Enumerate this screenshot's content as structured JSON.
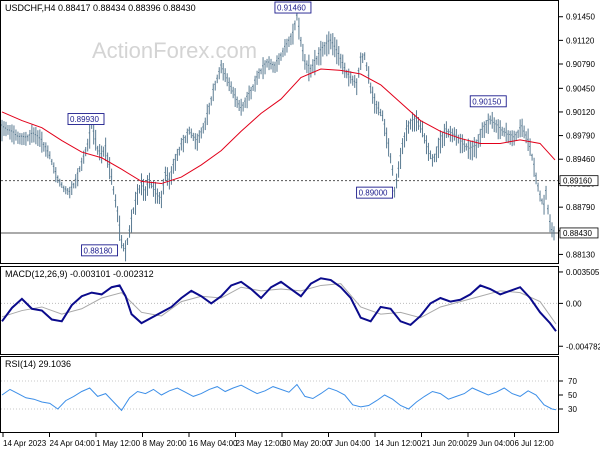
{
  "header": {
    "symbol_line": "USDCHF,H4 0.88417 0.88434 0.88396 0.88430",
    "watermark": "ActionForex.com"
  },
  "colors": {
    "price_bars": "#5a7b92",
    "moving_average": "#e2001a",
    "macd_line": "#0b0b8c",
    "macd_signal": "#a9a9a9",
    "rsi_line": "#3d8fe8",
    "box_text": "#1a1a8c",
    "axis": "#000000",
    "level_line": "#555555"
  },
  "chart_data": [
    {
      "type": "line",
      "panel": "price",
      "title": "USDCHF,H4 0.88417 0.88434 0.88396 0.88430",
      "ylim": [
        0.8808,
        0.916
      ],
      "x_ticks": [
        "14 Apr 2023",
        "24 Apr 04:00",
        "1 May 12:00",
        "8 May 20:00",
        "16 May 04:00",
        "23 May 12:00",
        "30 May 20:00",
        "7 Jun 04:00",
        "14 Jun 12:00",
        "21 Jun 20:00",
        "29 Jun 04:00",
        "6 Jul 12:00"
      ],
      "y_ticks": [
        0.9145,
        0.9112,
        0.9079,
        0.9045,
        0.9012,
        0.8979,
        0.8946,
        0.8912,
        0.8879,
        0.8846,
        0.8813
      ],
      "y_tick_labels": [
        "0.91450",
        "0.91120",
        "0.90790",
        "0.90450",
        "0.90120",
        "0.89790",
        "0.89460",
        "0.89120",
        "0.88790",
        "0.88460",
        "0.88130"
      ],
      "series": [
        {
          "name": "",
          "style": "bars",
          "x": [
            0,
            8,
            16,
            24,
            32,
            40,
            48,
            55,
            62,
            68,
            74,
            80,
            86,
            90,
            96,
            100,
            104,
            108,
            112,
            116,
            120,
            124,
            128,
            132,
            136,
            140,
            144,
            148,
            152,
            156,
            160,
            164,
            168,
            172,
            180,
            188,
            196,
            204,
            212,
            220,
            230,
            240,
            250,
            258,
            266,
            274,
            280,
            286,
            292,
            296,
            300,
            304,
            310,
            316,
            322,
            330,
            338,
            346,
            352,
            356,
            360,
            364,
            370,
            376,
            382,
            388,
            392,
            394,
            398,
            402,
            406,
            410,
            416,
            422,
            428,
            432,
            436,
            440,
            446,
            452,
            458,
            464,
            470,
            476,
            482,
            490,
            498,
            506,
            514,
            522,
            528,
            532,
            536,
            540,
            544,
            546,
            548,
            550,
            552,
            554
          ],
          "y": [
            0.899,
            0.8984,
            0.8976,
            0.8975,
            0.898,
            0.897,
            0.895,
            0.8921,
            0.8905,
            0.8899,
            0.8915,
            0.894,
            0.8965,
            0.8993,
            0.896,
            0.895,
            0.8961,
            0.8935,
            0.8902,
            0.887,
            0.883,
            0.8818,
            0.8845,
            0.8875,
            0.8895,
            0.891,
            0.89,
            0.8915,
            0.8905,
            0.8895,
            0.889,
            0.8925,
            0.8915,
            0.8935,
            0.8965,
            0.8985,
            0.897,
            0.8995,
            0.904,
            0.9075,
            0.9045,
            0.9015,
            0.904,
            0.9065,
            0.908,
            0.9075,
            0.909,
            0.9105,
            0.912,
            0.9146,
            0.911,
            0.908,
            0.907,
            0.9085,
            0.91,
            0.911,
            0.909,
            0.9065,
            0.9055,
            0.905,
            0.9085,
            0.909,
            0.9045,
            0.902,
            0.9005,
            0.8965,
            0.893,
            0.89,
            0.893,
            0.8965,
            0.8985,
            0.8995,
            0.9,
            0.8985,
            0.896,
            0.8945,
            0.895,
            0.897,
            0.8985,
            0.898,
            0.8975,
            0.8965,
            0.8958,
            0.8962,
            0.8985,
            0.9,
            0.899,
            0.898,
            0.8975,
            0.899,
            0.897,
            0.895,
            0.892,
            0.8895,
            0.888,
            0.89,
            0.8875,
            0.8855,
            0.8845,
            0.8843
          ]
        },
        {
          "name": "",
          "style": "line",
          "x": [
            0,
            20,
            40,
            60,
            80,
            100,
            120,
            140,
            160,
            180,
            200,
            220,
            240,
            260,
            280,
            300,
            320,
            340,
            360,
            380,
            400,
            420,
            440,
            460,
            480,
            500,
            520,
            540,
            555
          ],
          "y": [
            0.9012,
            0.9,
            0.899,
            0.8972,
            0.8956,
            0.8948,
            0.8932,
            0.8915,
            0.8912,
            0.8921,
            0.8938,
            0.8958,
            0.8985,
            0.901,
            0.903,
            0.906,
            0.9072,
            0.907,
            0.9065,
            0.905,
            0.9025,
            0.9,
            0.8985,
            0.8975,
            0.8968,
            0.8968,
            0.8973,
            0.8968,
            0.8945
          ]
        }
      ],
      "boxes": [
        {
          "text": "0.91460",
          "x": 292,
          "y": 0.9146
        },
        {
          "text": "0.89930",
          "x": 90,
          "y": 0.8993
        },
        {
          "text": "0.90150",
          "x": 488,
          "y": 0.9015
        },
        {
          "text": "0.89000",
          "x": 394,
          "y": 0.89
        },
        {
          "text": "0.88180",
          "x": 124,
          "y": 0.8818
        }
      ],
      "level_lines": [
        {
          "value": 0.8916,
          "text": "0.89160"
        },
        {
          "value": 0.8843,
          "text": "0.88430"
        }
      ]
    },
    {
      "type": "line",
      "panel": "macd",
      "title": "MACD(12,26,9) -0.003101 -0.002312",
      "ylim": [
        -0.0052,
        0.0035
      ],
      "y_tick_labels": [
        "0.003505",
        "0.00",
        "-0.004782"
      ],
      "y_ticks": [
        0.003505,
        0.0,
        -0.004782
      ],
      "series": [
        {
          "name": "",
          "x": [
            0,
            10,
            20,
            30,
            40,
            50,
            60,
            70,
            80,
            90,
            100,
            110,
            118,
            124,
            130,
            140,
            150,
            160,
            170,
            180,
            190,
            200,
            210,
            220,
            230,
            240,
            250,
            260,
            270,
            280,
            290,
            300,
            310,
            320,
            330,
            340,
            350,
            360,
            370,
            380,
            390,
            400,
            410,
            420,
            430,
            440,
            450,
            460,
            470,
            480,
            490,
            500,
            510,
            520,
            530,
            540,
            550,
            556
          ],
          "y": [
            -0.002,
            -0.0005,
            0.0005,
            -0.0006,
            -0.0008,
            -0.0018,
            -0.002,
            -0.0002,
            0.0008,
            0.0012,
            0.001,
            0.0018,
            0.002,
            0.0008,
            -0.0012,
            -0.0022,
            -0.0016,
            -0.001,
            -0.0004,
            0.0006,
            0.0014,
            0.0008,
            0.0,
            0.0008,
            0.002,
            0.0024,
            0.0016,
            0.0006,
            0.0018,
            0.0024,
            0.0016,
            0.0008,
            0.0022,
            0.0028,
            0.0026,
            0.0018,
            0.0006,
            -0.0016,
            -0.002,
            -0.0004,
            -0.0006,
            -0.002,
            -0.0024,
            -0.0014,
            0.0,
            0.0006,
            0.0002,
            0.0004,
            0.001,
            0.002,
            0.0016,
            0.001,
            0.0014,
            0.0018,
            0.0006,
            -0.001,
            -0.0022,
            -0.0031
          ]
        },
        {
          "name": "",
          "x": [
            0,
            20,
            40,
            60,
            80,
            100,
            120,
            140,
            160,
            180,
            200,
            220,
            240,
            260,
            280,
            300,
            320,
            340,
            360,
            380,
            400,
            420,
            440,
            460,
            480,
            500,
            520,
            540,
            556
          ],
          "y": [
            -0.0015,
            -0.0008,
            -0.0004,
            -0.0012,
            -0.0006,
            0.0006,
            0.0012,
            -0.001,
            -0.0014,
            0.0002,
            0.0008,
            0.0006,
            0.0018,
            0.0014,
            0.0016,
            0.0014,
            0.002,
            0.0022,
            -0.0004,
            -0.0012,
            -0.001,
            -0.0016,
            -0.0004,
            0.0002,
            0.0008,
            0.0014,
            0.0012,
            0.0002,
            -0.0023
          ]
        }
      ]
    },
    {
      "type": "line",
      "panel": "rsi",
      "title": "RSI(14) 29.1036",
      "ylim": [
        0,
        100
      ],
      "y_ticks": [
        70,
        50,
        30
      ],
      "y_tick_labels": [
        "70",
        "50",
        "30"
      ],
      "series": [
        {
          "name": "",
          "x": [
            0,
            8,
            16,
            24,
            32,
            40,
            48,
            56,
            64,
            72,
            80,
            88,
            96,
            104,
            112,
            120,
            128,
            136,
            144,
            152,
            160,
            168,
            176,
            184,
            192,
            200,
            208,
            216,
            224,
            232,
            240,
            248,
            256,
            264,
            272,
            280,
            288,
            296,
            304,
            312,
            320,
            328,
            336,
            344,
            352,
            360,
            368,
            376,
            384,
            392,
            400,
            408,
            416,
            424,
            432,
            440,
            448,
            456,
            464,
            472,
            480,
            488,
            496,
            504,
            512,
            520,
            528,
            536,
            544,
            552,
            556
          ],
          "y": [
            50,
            58,
            52,
            46,
            44,
            40,
            38,
            30,
            42,
            48,
            55,
            60,
            48,
            52,
            40,
            28,
            46,
            55,
            52,
            58,
            50,
            56,
            60,
            54,
            48,
            52,
            58,
            62,
            55,
            60,
            64,
            58,
            52,
            56,
            62,
            58,
            54,
            65,
            48,
            45,
            52,
            60,
            56,
            50,
            36,
            33,
            35,
            42,
            50,
            44,
            35,
            30,
            40,
            48,
            55,
            52,
            44,
            48,
            52,
            60,
            55,
            50,
            54,
            60,
            52,
            48,
            56,
            50,
            36,
            30,
            29
          ]
        }
      ]
    }
  ]
}
